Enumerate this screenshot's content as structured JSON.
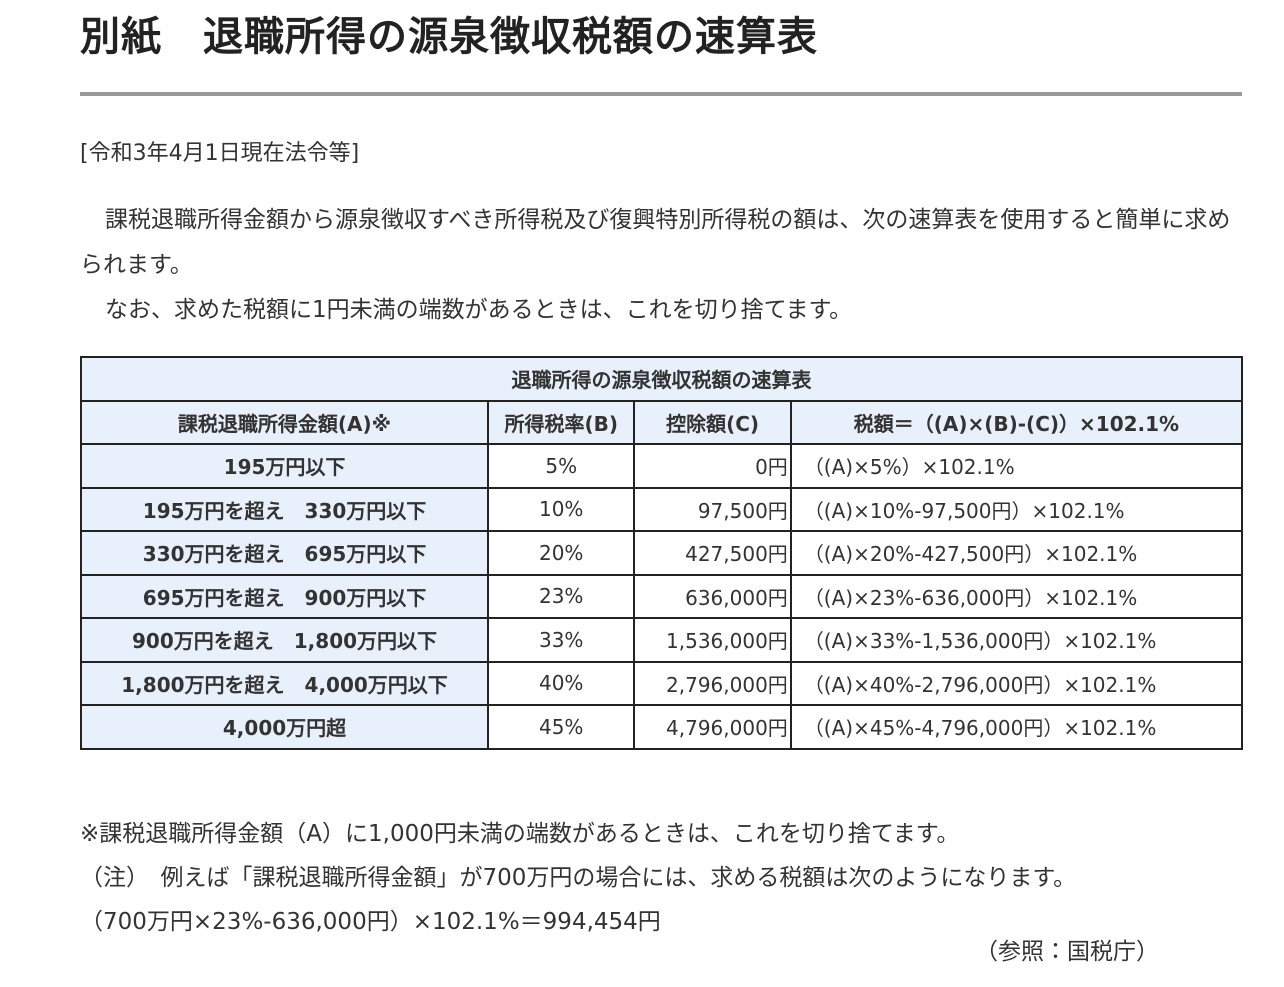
{
  "title": "別紙　退職所得の源泉徴収税額の速算表",
  "date_note": "[令和3年4月1日現在法令等]",
  "paragraphs": [
    "課税退職所得金額から源泉徴収すべき所得税及び復興特別所得税の額は、次の速算表を使用すると簡単に求められます。",
    "なお、求めた税額に1円未満の端数があるときは、これを切り捨てます。"
  ],
  "table": {
    "caption": "退職所得の源泉徴収税額の速算表",
    "headers": [
      "課税退職所得金額(A)※",
      "所得税率(B)",
      "控除額(C)",
      "税額＝（(A)×(B)-(C)）×102.1%"
    ],
    "rows": [
      [
        "195万円以下",
        "5%",
        "0円",
        "（(A)×5%）×102.1%"
      ],
      [
        "195万円を超え　330万円以下",
        "10%",
        "97,500円",
        "（(A)×10%-97,500円）×102.1%"
      ],
      [
        "330万円を超え　695万円以下",
        "20%",
        "427,500円",
        "（(A)×20%-427,500円）×102.1%"
      ],
      [
        "695万円を超え　900万円以下",
        "23%",
        "636,000円",
        "（(A)×23%-636,000円）×102.1%"
      ],
      [
        "900万円を超え　1,800万円以下",
        "33%",
        "1,536,000円",
        "（(A)×33%-1,536,000円）×102.1%"
      ],
      [
        "1,800万円を超え　4,000万円以下",
        "40%",
        "2,796,000円",
        "（(A)×40%-2,796,000円）×102.1%"
      ],
      [
        "4,000万円超",
        "45%",
        "4,796,000円",
        "（(A)×45%-4,796,000円）×102.1%"
      ]
    ]
  },
  "notes": [
    "※課税退職所得金額（A）に1,000円未満の端数があるときは、これを切り捨てます。",
    "（注）　例えば「課税退職所得金額」が700万円の場合には、求める税額は次のようになります。",
    "（700万円×23%-636,000円）×102.1%＝994,454円"
  ],
  "source": "（参照：国税庁）"
}
